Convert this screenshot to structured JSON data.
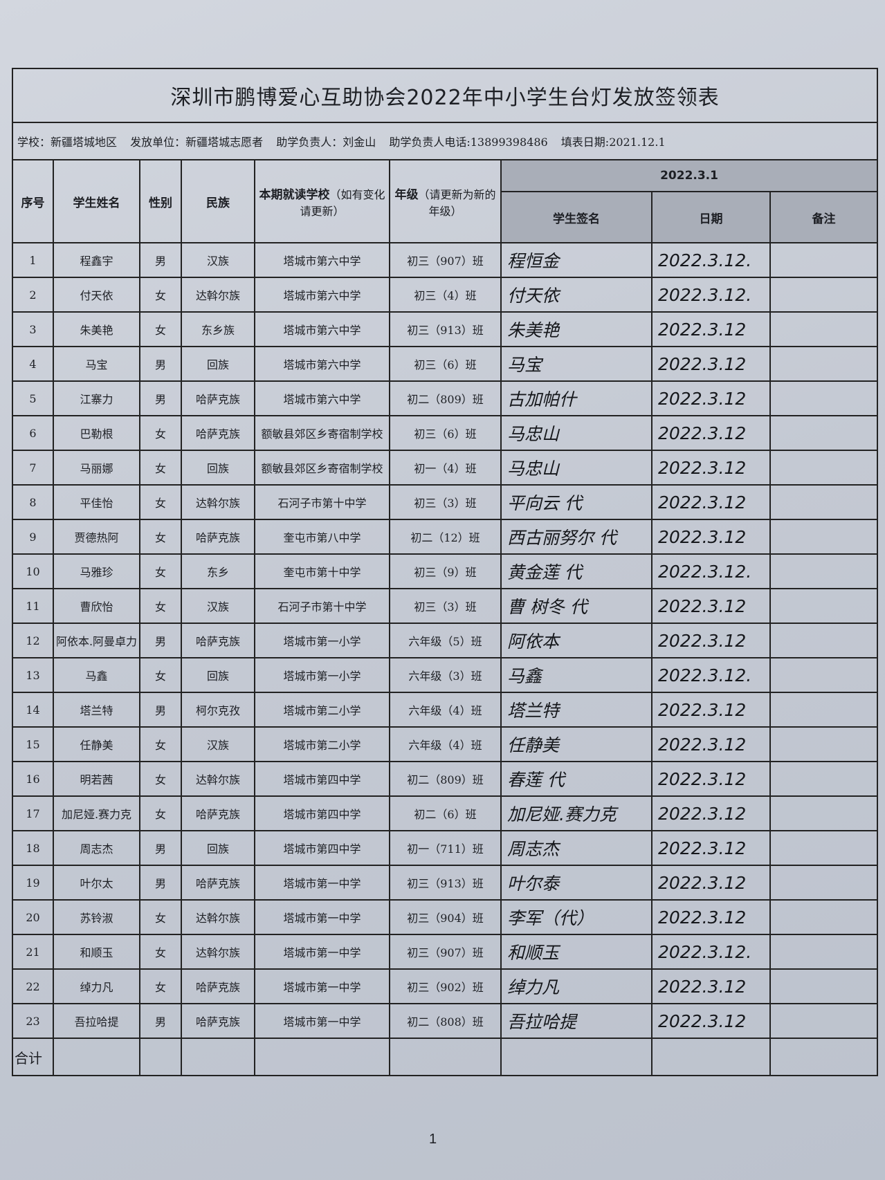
{
  "title": "深圳市鹏博爱心互助协会2022年中小学生台灯发放签领表",
  "info": {
    "school": "学校：新疆塔城地区",
    "unit": "发放单位：新疆塔城志愿者",
    "manager": "助学负责人：刘金山",
    "phone": "助学负责人电话:13899398486",
    "fill_date": "填表日期:2021.12.1"
  },
  "headers": {
    "no": "序号",
    "name": "学生姓名",
    "gender": "性别",
    "ethnicity": "民族",
    "school_bold": "本期就读学校",
    "school_note": "（如有变化请更新）",
    "grade_bold": "年级",
    "grade_note": "（请更新为新的年级）",
    "group_date": "2022.3.1",
    "signature": "学生签名",
    "date": "日期",
    "remark": "备注"
  },
  "rows": [
    {
      "no": "1",
      "name": "程鑫宇",
      "gender": "男",
      "ethnicity": "汉族",
      "school": "塔城市第六中学",
      "grade": "初三（907）班",
      "signature": "程恒金",
      "date": "2022.3.12."
    },
    {
      "no": "2",
      "name": "付天依",
      "gender": "女",
      "ethnicity": "达斡尔族",
      "school": "塔城市第六中学",
      "grade": "初三（4）班",
      "signature": "付天依",
      "date": "2022.3.12."
    },
    {
      "no": "3",
      "name": "朱美艳",
      "gender": "女",
      "ethnicity": "东乡族",
      "school": "塔城市第六中学",
      "grade": "初三（913）班",
      "signature": "朱美艳",
      "date": "2022.3.12"
    },
    {
      "no": "4",
      "name": "马宝",
      "gender": "男",
      "ethnicity": "回族",
      "school": "塔城市第六中学",
      "grade": "初三（6）班",
      "signature": "马宝",
      "date": "2022.3.12"
    },
    {
      "no": "5",
      "name": "江寨力",
      "gender": "男",
      "ethnicity": "哈萨克族",
      "school": "塔城市第六中学",
      "grade": "初二（809）班",
      "signature": "古加帕什",
      "date": "2022.3.12"
    },
    {
      "no": "6",
      "name": "巴勒根",
      "gender": "女",
      "ethnicity": "哈萨克族",
      "school": "额敏县郊区乡寄宿制学校",
      "grade": "初三（6）班",
      "signature": "马忠山",
      "date": "2022.3.12"
    },
    {
      "no": "7",
      "name": "马丽娜",
      "gender": "女",
      "ethnicity": "回族",
      "school": "额敏县郊区乡寄宿制学校",
      "grade": "初一（4）班",
      "signature": "马忠山",
      "date": "2022.3.12"
    },
    {
      "no": "8",
      "name": "平佳怡",
      "gender": "女",
      "ethnicity": "达斡尔族",
      "school": "石河子市第十中学",
      "grade": "初三（3）班",
      "signature": "平向云 代",
      "date": "2022.3.12"
    },
    {
      "no": "9",
      "name": "贾德热阿",
      "gender": "女",
      "ethnicity": "哈萨克族",
      "school": "奎屯市第八中学",
      "grade": "初二（12）班",
      "signature": "西古丽努尔 代",
      "date": "2022.3.12"
    },
    {
      "no": "10",
      "name": "马雅珍",
      "gender": "女",
      "ethnicity": "东乡",
      "school": "奎屯市第十中学",
      "grade": "初三（9）班",
      "signature": "黄金莲 代",
      "date": "2022.3.12."
    },
    {
      "no": "11",
      "name": "曹欣怡",
      "gender": "女",
      "ethnicity": "汉族",
      "school": "石河子市第十中学",
      "grade": "初三（3）班",
      "signature": "曹 树冬 代",
      "date": "2022.3.12"
    },
    {
      "no": "12",
      "name": "阿依本.阿曼卓力",
      "gender": "男",
      "ethnicity": "哈萨克族",
      "school": "塔城市第一小学",
      "grade": "六年级（5）班",
      "signature": "阿依本",
      "date": "2022.3.12"
    },
    {
      "no": "13",
      "name": "马鑫",
      "gender": "女",
      "ethnicity": "回族",
      "school": "塔城市第一小学",
      "grade": "六年级（3）班",
      "signature": "马鑫",
      "date": "2022.3.12."
    },
    {
      "no": "14",
      "name": "塔兰特",
      "gender": "男",
      "ethnicity": "柯尔克孜",
      "school": "塔城市第二小学",
      "grade": "六年级（4）班",
      "signature": "塔兰特",
      "date": "2022.3.12"
    },
    {
      "no": "15",
      "name": "任静美",
      "gender": "女",
      "ethnicity": "汉族",
      "school": "塔城市第二小学",
      "grade": "六年级（4）班",
      "signature": "任静美",
      "date": "2022.3.12"
    },
    {
      "no": "16",
      "name": "明若茜",
      "gender": "女",
      "ethnicity": "达斡尔族",
      "school": "塔城市第四中学",
      "grade": "初二（809）班",
      "signature": "春莲 代",
      "date": "2022.3.12"
    },
    {
      "no": "17",
      "name": "加尼娅.赛力克",
      "gender": "女",
      "ethnicity": "哈萨克族",
      "school": "塔城市第四中学",
      "grade": "初二（6）班",
      "signature": "加尼娅.赛力克",
      "date": "2022.3.12"
    },
    {
      "no": "18",
      "name": "周志杰",
      "gender": "男",
      "ethnicity": "回族",
      "school": "塔城市第四中学",
      "grade": "初一（711）班",
      "signature": "周志杰",
      "date": "2022.3.12"
    },
    {
      "no": "19",
      "name": "叶尔太",
      "gender": "男",
      "ethnicity": "哈萨克族",
      "school": "塔城市第一中学",
      "grade": "初三（913）班",
      "signature": "叶尔泰",
      "date": "2022.3.12"
    },
    {
      "no": "20",
      "name": "苏铃淑",
      "gender": "女",
      "ethnicity": "达斡尔族",
      "school": "塔城市第一中学",
      "grade": "初三（904）班",
      "signature": "李军（代）",
      "date": "2022.3.12"
    },
    {
      "no": "21",
      "name": "和顺玉",
      "gender": "女",
      "ethnicity": "达斡尔族",
      "school": "塔城市第一中学",
      "grade": "初三（907）班",
      "signature": "和顺玉",
      "date": "2022.3.12."
    },
    {
      "no": "22",
      "name": "绰力凡",
      "gender": "女",
      "ethnicity": "哈萨克族",
      "school": "塔城市第一中学",
      "grade": "初三（902）班",
      "signature": "绰力凡",
      "date": "2022.3.12"
    },
    {
      "no": "23",
      "name": "吾拉哈提",
      "gender": "男",
      "ethnicity": "哈萨克族",
      "school": "塔城市第一中学",
      "grade": "初二（808）班",
      "signature": "吾拉哈提",
      "date": "2022.3.12"
    }
  ],
  "total_label": "合计",
  "page_number": "1"
}
